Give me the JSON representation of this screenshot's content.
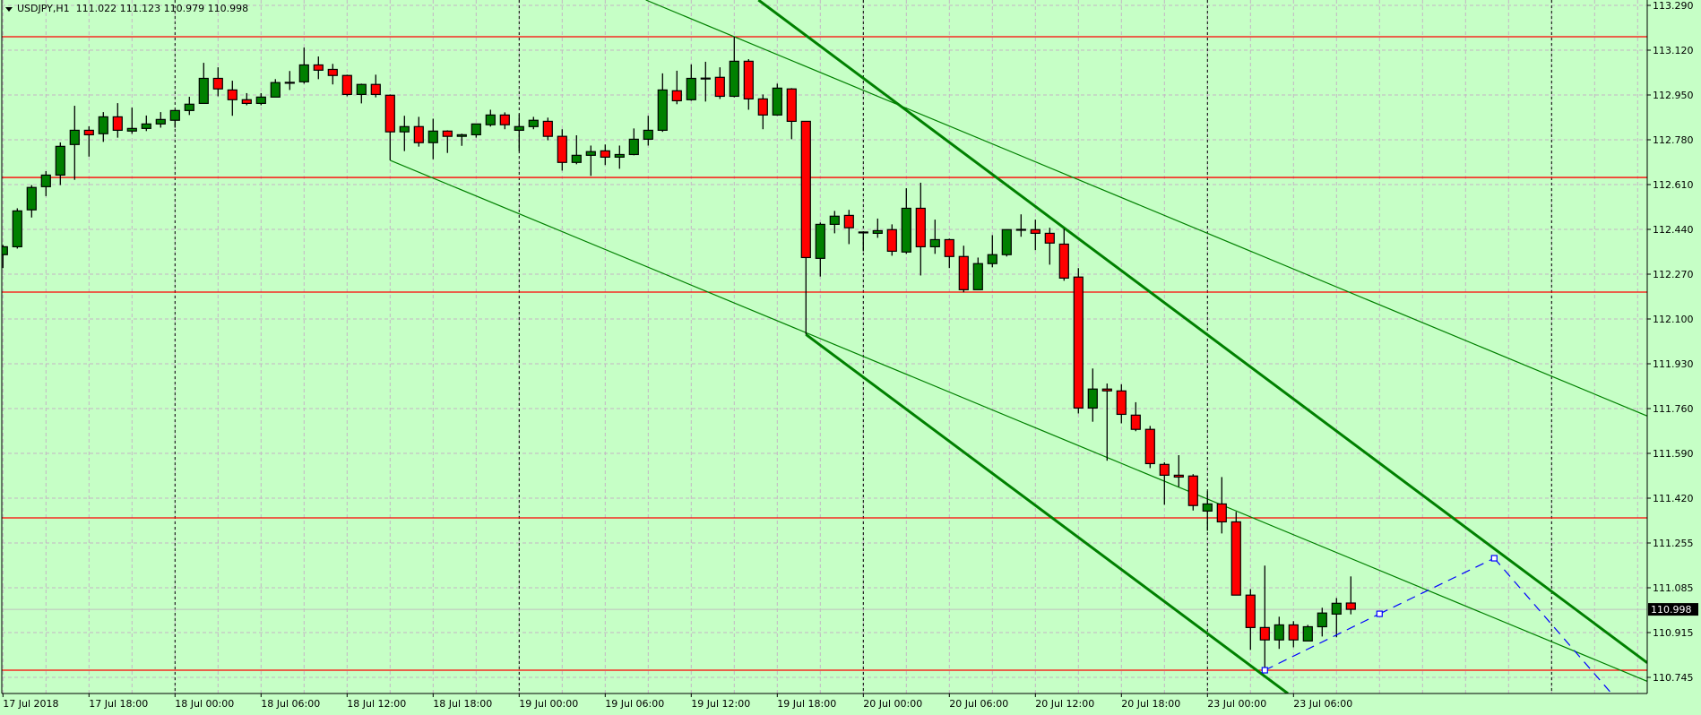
{
  "header": {
    "symbol_timeframe": "USDJPY,H1",
    "open": "111.022",
    "high": "111.123",
    "low": "110.979",
    "close": "110.998"
  },
  "colors": {
    "background": "#c6ffc6",
    "grid": "#c4b4c4",
    "bull": "#008000",
    "bear": "#ff0000",
    "level_line": "#ff0000",
    "trendline": "#008000",
    "projection": "#0000ff",
    "bid_line": "#c0c0c0"
  },
  "chart_data": {
    "type": "candlestick",
    "symbol": "USDJPY",
    "timeframe": "H1",
    "first_bar_time": "2018-07-17 12:00",
    "weekend_gap": [
      "2018-07-21",
      "2018-07-22"
    ],
    "ohlc": [
      [
        112.344,
        112.381,
        112.293,
        112.374
      ],
      [
        112.374,
        112.52,
        112.367,
        112.51
      ],
      [
        112.514,
        112.608,
        112.485,
        112.599
      ],
      [
        112.602,
        112.661,
        112.566,
        112.646
      ],
      [
        112.646,
        112.77,
        112.608,
        112.755
      ],
      [
        112.762,
        112.909,
        112.628,
        112.816
      ],
      [
        112.816,
        112.831,
        112.716,
        112.799
      ],
      [
        112.803,
        112.885,
        112.772,
        112.867
      ],
      [
        112.867,
        112.919,
        112.788,
        112.816
      ],
      [
        112.813,
        112.902,
        112.803,
        112.823
      ],
      [
        112.823,
        112.872,
        112.813,
        112.84
      ],
      [
        112.84,
        112.885,
        112.826,
        112.857
      ],
      [
        112.854,
        112.891,
        112.826,
        112.891
      ],
      [
        112.891,
        112.943,
        112.874,
        112.915
      ],
      [
        112.918,
        113.072,
        112.918,
        113.013
      ],
      [
        113.013,
        113.055,
        112.945,
        112.973
      ],
      [
        112.969,
        113.004,
        112.871,
        112.932
      ],
      [
        112.932,
        112.957,
        112.911,
        112.918
      ],
      [
        112.918,
        112.957,
        112.911,
        112.942
      ],
      [
        112.942,
        113.01,
        112.942,
        112.997
      ],
      [
        112.997,
        113.041,
        112.969,
        112.998
      ],
      [
        113.0,
        113.13,
        112.993,
        113.064
      ],
      [
        113.064,
        113.096,
        113.01,
        113.044
      ],
      [
        113.047,
        113.068,
        112.99,
        113.024
      ],
      [
        113.024,
        113.027,
        112.945,
        112.952
      ],
      [
        112.952,
        112.993,
        112.918,
        112.99
      ],
      [
        112.99,
        113.027,
        112.941,
        112.952
      ],
      [
        112.949,
        112.952,
        112.702,
        112.81
      ],
      [
        112.81,
        112.871,
        112.737,
        112.83
      ],
      [
        112.83,
        112.867,
        112.754,
        112.769
      ],
      [
        112.769,
        112.86,
        112.706,
        112.813
      ],
      [
        112.813,
        112.816,
        112.73,
        112.793
      ],
      [
        112.793,
        112.803,
        112.757,
        112.799
      ],
      [
        112.799,
        112.84,
        112.788,
        112.84
      ],
      [
        112.837,
        112.894,
        112.83,
        112.874
      ],
      [
        112.874,
        112.884,
        112.82,
        112.837
      ],
      [
        112.816,
        112.877,
        112.737,
        112.83
      ],
      [
        112.83,
        112.867,
        112.82,
        112.854
      ],
      [
        112.85,
        112.864,
        112.778,
        112.793
      ],
      [
        112.793,
        112.82,
        112.663,
        112.694
      ],
      [
        112.694,
        112.797,
        112.687,
        112.721
      ],
      [
        112.721,
        112.758,
        112.643,
        112.735
      ],
      [
        112.738,
        112.762,
        112.684,
        112.714
      ],
      [
        112.714,
        112.758,
        112.67,
        112.724
      ],
      [
        112.724,
        112.823,
        112.721,
        112.782
      ],
      [
        112.782,
        112.871,
        112.758,
        112.816
      ],
      [
        112.816,
        113.032,
        112.81,
        112.969
      ],
      [
        112.966,
        113.042,
        112.915,
        112.928
      ],
      [
        112.932,
        113.066,
        112.928,
        113.013
      ],
      [
        113.013,
        113.076,
        112.925,
        113.014
      ],
      [
        113.017,
        113.055,
        112.935,
        112.945
      ],
      [
        112.945,
        113.171,
        112.941,
        113.078
      ],
      [
        113.078,
        113.086,
        112.894,
        112.935
      ],
      [
        112.935,
        112.952,
        112.82,
        112.874
      ],
      [
        112.874,
        112.993,
        112.871,
        112.976
      ],
      [
        112.973,
        112.976,
        112.782,
        112.85
      ],
      [
        112.85,
        112.85,
        112.041,
        112.333
      ],
      [
        112.33,
        112.466,
        112.261,
        112.459
      ],
      [
        112.459,
        112.51,
        112.425,
        112.49
      ],
      [
        112.493,
        112.514,
        112.384,
        112.446
      ],
      [
        112.43,
        112.432,
        112.357,
        112.43
      ],
      [
        112.425,
        112.481,
        112.408,
        112.435
      ],
      [
        112.439,
        112.459,
        112.34,
        112.357
      ],
      [
        112.354,
        112.596,
        112.347,
        112.52
      ],
      [
        112.52,
        112.617,
        112.265,
        112.374
      ],
      [
        112.374,
        112.477,
        112.347,
        112.401
      ],
      [
        112.401,
        112.405,
        112.293,
        112.337
      ],
      [
        112.337,
        112.378,
        112.201,
        112.211
      ],
      [
        112.211,
        112.333,
        112.211,
        112.31
      ],
      [
        112.31,
        112.418,
        112.296,
        112.344
      ],
      [
        112.344,
        112.439,
        112.337,
        112.439
      ],
      [
        112.439,
        112.497,
        112.412,
        112.44
      ],
      [
        112.439,
        112.477,
        112.361,
        112.425
      ],
      [
        112.425,
        112.446,
        112.306,
        112.388
      ],
      [
        112.384,
        112.442,
        112.245,
        112.255
      ],
      [
        112.259,
        112.293,
        111.741,
        111.762
      ],
      [
        111.762,
        111.912,
        111.71,
        111.834
      ],
      [
        111.834,
        111.855,
        111.562,
        111.827
      ],
      [
        111.827,
        111.852,
        111.704,
        111.738
      ],
      [
        111.735,
        111.784,
        111.674,
        111.681
      ],
      [
        111.681,
        111.694,
        111.534,
        111.551
      ],
      [
        111.548,
        111.556,
        111.395,
        111.507
      ],
      [
        111.507,
        111.583,
        111.463,
        111.5
      ],
      [
        111.504,
        111.511,
        111.373,
        111.392
      ],
      [
        111.371,
        111.446,
        111.296,
        111.398
      ],
      [
        111.398,
        111.5,
        111.286,
        111.33
      ],
      [
        111.33,
        111.368,
        111.052,
        111.052
      ],
      [
        111.052,
        111.075,
        110.844,
        110.929
      ],
      [
        110.929,
        111.164,
        110.769,
        110.882
      ],
      [
        110.882,
        110.97,
        110.848,
        110.939
      ],
      [
        110.939,
        110.953,
        110.854,
        110.882
      ],
      [
        110.878,
        110.939,
        110.878,
        110.932
      ],
      [
        110.932,
        111.004,
        110.895,
        110.984
      ],
      [
        110.98,
        111.041,
        110.892,
        111.021
      ],
      [
        111.022,
        111.123,
        110.979,
        110.998
      ]
    ],
    "ylim": [
      110.745,
      113.29
    ],
    "y_ticks": [
      "113.290",
      "113.120",
      "112.950",
      "112.780",
      "112.610",
      "112.440",
      "112.270",
      "112.100",
      "111.930",
      "111.760",
      "111.590",
      "111.420",
      "111.255",
      "111.085",
      "110.915",
      "110.745"
    ],
    "x_ticks": [
      "17 Jul 2018",
      "17 Jul 18:00",
      "18 Jul 00:00",
      "18 Jul 06:00",
      "18 Jul 12:00",
      "18 Jul 18:00",
      "19 Jul 00:00",
      "19 Jul 06:00",
      "19 Jul 12:00",
      "19 Jul 18:00",
      "20 Jul 00:00",
      "20 Jul 06:00",
      "20 Jul 12:00",
      "20 Jul 18:00",
      "23 Jul 00:00",
      "23 Jul 06:00"
    ],
    "current_price": "110.998",
    "grid": true,
    "horizontal_levels": [
      113.171,
      112.637,
      112.202,
      111.345,
      110.767
    ],
    "trendlines": [
      {
        "style": "thin",
        "points": [
          [
            "2018-07-19 15:00",
            113.171
          ],
          [
            "2018-07-23 10:00",
            112.199
          ]
        ],
        "extend": "both"
      },
      {
        "style": "thin",
        "points": [
          [
            "2018-07-18 15:00",
            112.702
          ],
          [
            "2018-07-23 10:00",
            111.191
          ]
        ],
        "extend": "right"
      },
      {
        "style": "thick",
        "points": [
          [
            "2018-07-19 20:00",
            113.176
          ],
          [
            "2018-07-23 10:00",
            111.634
          ]
        ],
        "extend": "both"
      },
      {
        "style": "thick",
        "points": [
          [
            "2018-07-19 20:00",
            112.041
          ],
          [
            "2018-07-23 00:00",
            110.906
          ]
        ],
        "extend": "right"
      }
    ],
    "projection": [
      [
        "2018-07-23 04:00",
        110.767
      ],
      [
        "2018-07-23 12:00",
        110.981
      ],
      [
        "2018-07-23 20:00",
        111.192
      ],
      [
        "2018-07-24 04:00",
        110.69
      ]
    ]
  }
}
